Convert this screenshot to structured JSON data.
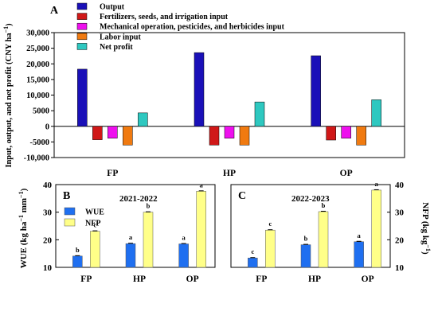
{
  "chart_data": [
    {
      "panel": "A",
      "type": "bar",
      "categories": [
        "FP",
        "HP",
        "OP"
      ],
      "ylabel": "Input, output, and net profit (CNY ha⁻¹)",
      "ylim": [
        -10000,
        30000
      ],
      "yticks": [
        "-10,000",
        "-5000",
        "0",
        "5000",
        "10,000",
        "15,000",
        "20,000",
        "25,000",
        "30,000"
      ],
      "ytick_values": [
        -10000,
        -5000,
        0,
        5000,
        10000,
        15000,
        20000,
        25000,
        30000
      ],
      "legend_position": "top-left",
      "series": [
        {
          "name": "Output",
          "color": "#1a10b8",
          "values": [
            18300,
            23600,
            22600
          ]
        },
        {
          "name": "Fertilizers, seeds, and irrigation input",
          "color": "#d01818",
          "values": [
            -4300,
            -6000,
            -4400
          ]
        },
        {
          "name": "Mechanical operation, pesticides, and herbicides input",
          "color": "#ee10ee",
          "values": [
            -3800,
            -3800,
            -3800
          ]
        },
        {
          "name": "Labor input",
          "color": "#f07a10",
          "values": [
            -6000,
            -6000,
            -6000
          ]
        },
        {
          "name": "Net profit",
          "color": "#2ec8c0",
          "values": [
            4300,
            7800,
            8500
          ]
        }
      ]
    },
    {
      "panel": "B",
      "type": "bar",
      "title": "2021-2022",
      "categories": [
        "FP",
        "HP",
        "OP"
      ],
      "ylabel_left": "WUE (kg ha⁻¹ mm⁻¹)",
      "ylim": [
        10,
        40
      ],
      "yticks": [
        "10",
        "20",
        "30",
        "40"
      ],
      "ytick_values": [
        10,
        20,
        30,
        40
      ],
      "legend_position": "top-left",
      "series": [
        {
          "name": "WUE",
          "color": "#1f6ff0",
          "values": [
            14.1,
            18.6,
            18.5
          ],
          "letters": [
            "b",
            "a",
            "a"
          ]
        },
        {
          "name": "NFP",
          "color": "#ffff88",
          "values": [
            23.1,
            30.0,
            37.6
          ],
          "letters": [
            "c",
            "b",
            "a"
          ]
        }
      ]
    },
    {
      "panel": "C",
      "type": "bar",
      "title": "2022-2023",
      "categories": [
        "FP",
        "HP",
        "OP"
      ],
      "ylabel_right": "NFP (kg kg⁻¹)",
      "ylim": [
        10,
        40
      ],
      "yticks": [
        "10",
        "20",
        "30",
        "40"
      ],
      "ytick_values": [
        10,
        20,
        30,
        40
      ],
      "series": [
        {
          "name": "WUE",
          "color": "#1f6ff0",
          "values": [
            13.4,
            18.2,
            19.3
          ],
          "letters": [
            "c",
            "b",
            "a"
          ]
        },
        {
          "name": "NFP",
          "color": "#ffff88",
          "values": [
            23.5,
            30.2,
            38.0
          ],
          "letters": [
            "c",
            "b",
            "a"
          ]
        }
      ]
    }
  ]
}
